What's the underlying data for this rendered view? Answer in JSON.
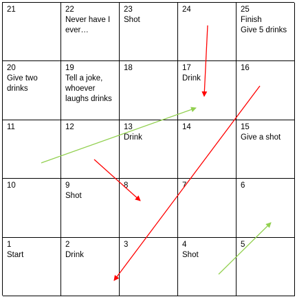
{
  "board": {
    "rows": [
      [
        {
          "number": "21",
          "text": ""
        },
        {
          "number": "22",
          "text": "Never have I\never…"
        },
        {
          "number": "23",
          "text": "Shot"
        },
        {
          "number": "24",
          "text": ""
        },
        {
          "number": "25",
          "text": "Finish\nGive 5 drinks"
        }
      ],
      [
        {
          "number": "20",
          "text": "Give two\ndrinks"
        },
        {
          "number": "19",
          "text": "Tell a joke,\nwhoever\nlaughs drinks"
        },
        {
          "number": "18",
          "text": ""
        },
        {
          "number": "17",
          "text": "Drink"
        },
        {
          "number": "16",
          "text": ""
        }
      ],
      [
        {
          "number": "11",
          "text": ""
        },
        {
          "number": "12",
          "text": ""
        },
        {
          "number": "13",
          "text": "Drink"
        },
        {
          "number": "14",
          "text": ""
        },
        {
          "number": "15",
          "text": "Give a shot"
        }
      ],
      [
        {
          "number": "10",
          "text": ""
        },
        {
          "number": "9",
          "text": "Shot"
        },
        {
          "number": "8",
          "text": ""
        },
        {
          "number": "7",
          "text": ""
        },
        {
          "number": "6",
          "text": ""
        }
      ],
      [
        {
          "number": "1",
          "text": "Start"
        },
        {
          "number": "2",
          "text": "Drink"
        },
        {
          "number": "3",
          "text": ""
        },
        {
          "number": "4",
          "text": "Shot"
        },
        {
          "number": "5",
          "text": ""
        }
      ]
    ]
  },
  "ladders": [
    {
      "from": "11",
      "to": "17"
    },
    {
      "from": "5",
      "to": "6"
    }
  ],
  "snakes": [
    {
      "from": "24",
      "to": "17"
    },
    {
      "from": "12",
      "to": "8"
    },
    {
      "from": "16",
      "to": "2"
    }
  ],
  "colors": {
    "ladder": "#92d050",
    "snake": "#ff0000",
    "grid": "#000000"
  }
}
